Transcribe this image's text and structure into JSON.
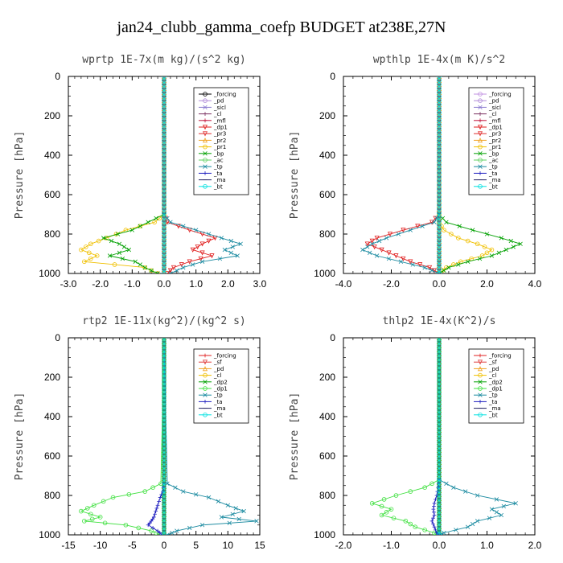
{
  "title": "jan24_clubb_gamma_coefp  BUDGET at238E,27N",
  "chart_data": [
    {
      "type": "line",
      "title": "wprtp   1E-7x(m kg)/(s^2 kg)",
      "ylabel": "Pressure [hPa]",
      "xlim": [
        -3.0,
        3.0
      ],
      "ylim": [
        1000,
        0
      ],
      "xticks": [
        "-3.0",
        "-2.0",
        "-1.0",
        "0.0",
        "1.0",
        "2.0",
        "3.0"
      ],
      "yticks": [
        "0",
        "200",
        "400",
        "600",
        "800",
        "1000"
      ],
      "pressure": [
        700,
        740,
        780,
        820,
        850,
        880,
        910,
        940,
        970,
        1000
      ],
      "legend": [
        "_forcing",
        "_pd",
        "_sicl",
        "_cl",
        "_mfl",
        "_dp1",
        "_pr3",
        "_pr2",
        "_pr1",
        "_bp",
        "_ac",
        "_tp",
        "_ta",
        "_ma",
        "_bt"
      ],
      "series": [
        {
          "name": "_forcing",
          "color": "#000000",
          "marker": "o",
          "values": [
            0,
            0,
            0,
            0,
            0,
            0,
            0,
            0,
            0,
            0
          ]
        },
        {
          "name": "_pd",
          "color": "#b08ad8",
          "marker": "o",
          "values": [
            0,
            0,
            0,
            0,
            0,
            0,
            0,
            0,
            0,
            0
          ]
        },
        {
          "name": "_sicl",
          "color": "#8a7ad0",
          "marker": "x",
          "values": [
            0,
            0,
            0,
            0,
            0,
            0,
            0,
            0,
            0,
            0
          ]
        },
        {
          "name": "_cl",
          "color": "#7a3060",
          "marker": "+",
          "values": [
            0,
            0,
            0,
            0,
            0,
            0,
            0,
            0,
            0,
            0
          ]
        },
        {
          "name": "_mfl",
          "color": "#c0143c",
          "marker": "+",
          "values": [
            0,
            0,
            0,
            0,
            0,
            0,
            0,
            0,
            0,
            0
          ]
        },
        {
          "name": "_dp1",
          "color": "#e02020",
          "marker": "v",
          "values": [
            0.0,
            0.1,
            0.8,
            1.6,
            1.2,
            0.9,
            1.5,
            0.8,
            0.3,
            0.1
          ]
        },
        {
          "name": "_pr3",
          "color": "#e03030",
          "marker": "v",
          "values": [
            0,
            0,
            0,
            0,
            0,
            0,
            0,
            0,
            0,
            0
          ]
        },
        {
          "name": "_pr2",
          "color": "#f0a020",
          "marker": "^",
          "values": [
            0,
            0,
            0,
            0,
            0,
            0,
            0,
            0,
            0,
            0
          ]
        },
        {
          "name": "_pr1",
          "color": "#f0c000",
          "marker": "o",
          "values": [
            0.0,
            -0.3,
            -1.2,
            -1.8,
            -2.3,
            -2.6,
            -2.1,
            -2.5,
            -0.6,
            -0.2
          ]
        },
        {
          "name": "_bp",
          "color": "#00a000",
          "marker": "x",
          "values": [
            0.0,
            -0.5,
            -1.0,
            -1.9,
            -1.4,
            -1.1,
            -1.7,
            -0.9,
            -0.6,
            -0.2
          ]
        },
        {
          "name": "_ac",
          "color": "#60d060",
          "marker": "o",
          "values": [
            0,
            0,
            0,
            0,
            0,
            0,
            0,
            0,
            0,
            0
          ]
        },
        {
          "name": "_tp",
          "color": "#1a8aa0",
          "marker": "x",
          "values": [
            0.0,
            0.2,
            1.0,
            1.8,
            2.4,
            1.9,
            2.3,
            1.2,
            0.6,
            0.2
          ]
        },
        {
          "name": "_ta",
          "color": "#2020c0",
          "marker": "+",
          "values": [
            0,
            0,
            0,
            0,
            0,
            0,
            0,
            0,
            0,
            0
          ]
        },
        {
          "name": "_ma",
          "color": "#202060",
          "marker": "-",
          "values": [
            0,
            0,
            0,
            0,
            0,
            0,
            0,
            0,
            0,
            0
          ]
        },
        {
          "name": "_bt",
          "color": "#00e0e0",
          "marker": "o",
          "values": [
            0,
            0,
            0,
            0,
            0,
            0,
            0,
            0,
            0,
            0
          ]
        }
      ]
    },
    {
      "type": "line",
      "title": "wpthlp   1E-4x(m K)/s^2",
      "ylabel": "Pressure [hPa]",
      "xlim": [
        -4.0,
        4.0
      ],
      "ylim": [
        1000,
        0
      ],
      "xticks": [
        "-4.0",
        "-2.0",
        "0.0",
        "2.0",
        "4.0"
      ],
      "yticks": [
        "0",
        "200",
        "400",
        "600",
        "800",
        "1000"
      ],
      "pressure": [
        700,
        740,
        780,
        820,
        850,
        880,
        910,
        940,
        970,
        1000
      ],
      "legend": [
        "_forcing",
        "_pd",
        "_sicl",
        "_cl",
        "_mfl",
        "_dp1",
        "_pr3",
        "_pr2",
        "_pr1",
        "_bp",
        "_ac",
        "_tp",
        "_ta",
        "_ma",
        "_bt"
      ],
      "series": [
        {
          "name": "_forcing",
          "color": "#c090e0",
          "marker": "o",
          "values": [
            0,
            0,
            0,
            0,
            0,
            0,
            0,
            0,
            0,
            0
          ]
        },
        {
          "name": "_pd",
          "color": "#b08ad8",
          "marker": "o",
          "values": [
            0,
            0,
            0,
            0,
            0,
            0,
            0,
            0,
            0,
            0
          ]
        },
        {
          "name": "_sicl",
          "color": "#8a7ad0",
          "marker": "x",
          "values": [
            0,
            0,
            0,
            0,
            0,
            0,
            0,
            0,
            0,
            0
          ]
        },
        {
          "name": "_cl",
          "color": "#7a3060",
          "marker": "+",
          "values": [
            0,
            0,
            0,
            0,
            0,
            0,
            0,
            0,
            0,
            0
          ]
        },
        {
          "name": "_mfl",
          "color": "#c0143c",
          "marker": "+",
          "values": [
            0,
            0,
            0,
            0,
            0,
            0,
            0,
            0,
            0,
            0
          ]
        },
        {
          "name": "_dp1",
          "color": "#e02020",
          "marker": "v",
          "values": [
            0.0,
            -0.3,
            -1.5,
            -2.6,
            -3.0,
            -2.4,
            -1.8,
            -1.2,
            -0.4,
            0.0
          ]
        },
        {
          "name": "_pr3",
          "color": "#e03030",
          "marker": "v",
          "values": [
            0,
            0,
            0,
            0,
            0,
            0,
            0,
            0,
            0,
            0
          ]
        },
        {
          "name": "_pr2",
          "color": "#f0a020",
          "marker": "^",
          "values": [
            0,
            0,
            0,
            0,
            0,
            0,
            0,
            0,
            0,
            0
          ]
        },
        {
          "name": "_pr1",
          "color": "#f0c000",
          "marker": "o",
          "values": [
            0,
            0,
            0.2,
            0.8,
            1.6,
            2.2,
            1.8,
            0.9,
            0.3,
            0.0
          ]
        },
        {
          "name": "_bp",
          "color": "#00a000",
          "marker": "x",
          "values": [
            0.0,
            0.3,
            1.4,
            2.6,
            3.4,
            2.8,
            2.2,
            1.2,
            0.4,
            0.0
          ]
        },
        {
          "name": "_ac",
          "color": "#60d060",
          "marker": "o",
          "values": [
            0,
            0,
            0,
            0,
            0,
            0,
            0,
            0,
            0,
            0
          ]
        },
        {
          "name": "_tp",
          "color": "#1a8aa0",
          "marker": "x",
          "values": [
            0.0,
            -0.2,
            -1.2,
            -2.2,
            -2.8,
            -3.2,
            -2.6,
            -1.6,
            -0.6,
            0.0
          ]
        },
        {
          "name": "_ta",
          "color": "#2020c0",
          "marker": "+",
          "values": [
            0,
            0,
            0,
            0,
            0,
            0,
            0,
            0,
            0,
            0
          ]
        },
        {
          "name": "_ma",
          "color": "#202060",
          "marker": "-",
          "values": [
            0,
            0,
            0,
            0,
            0,
            0,
            0,
            0,
            0,
            0
          ]
        },
        {
          "name": "_bt",
          "color": "#00e0e0",
          "marker": "o",
          "values": [
            0,
            0,
            0,
            0,
            0,
            0,
            0,
            0,
            0,
            0
          ]
        }
      ]
    },
    {
      "type": "line",
      "title": "rtp2   1E-11x(kg^2)/(kg^2 s)",
      "ylabel": "Pressure [hPa]",
      "xlim": [
        -15,
        15
      ],
      "ylim": [
        1000,
        0
      ],
      "xticks": [
        "-15",
        "-10",
        "-5",
        "0",
        "5",
        "10",
        "15"
      ],
      "yticks": [
        "0",
        "200",
        "400",
        "600",
        "800",
        "1000"
      ],
      "pressure": [
        740,
        780,
        810,
        850,
        880,
        910,
        930,
        950,
        980,
        1000
      ],
      "legend": [
        "_forcing",
        "_sf",
        "_pd",
        "_cl",
        "_dp2",
        "_dp1",
        "_tp",
        "_ta",
        "_ma",
        "_bt"
      ],
      "series": [
        {
          "name": "_forcing",
          "color": "#e02020",
          "marker": "+",
          "values": [
            0,
            0,
            0,
            0,
            0,
            0,
            0,
            0,
            0,
            0
          ]
        },
        {
          "name": "_sf",
          "color": "#e04040",
          "marker": "v",
          "values": [
            0,
            0,
            0,
            0,
            0,
            0,
            0,
            0,
            0,
            0
          ]
        },
        {
          "name": "_pd",
          "color": "#f0a020",
          "marker": "^",
          "values": [
            0,
            0,
            0,
            0,
            0,
            0,
            0,
            0,
            0,
            0
          ]
        },
        {
          "name": "_cl",
          "color": "#f0c000",
          "marker": "o",
          "values": [
            0,
            0,
            0,
            0,
            0,
            0,
            0,
            0,
            0,
            0
          ]
        },
        {
          "name": "_dp2",
          "color": "#00a000",
          "marker": "x",
          "values": [
            0,
            0,
            0,
            0,
            0,
            0,
            0,
            0,
            0,
            0
          ]
        },
        {
          "name": "_dp1",
          "color": "#40e040",
          "marker": "o",
          "values": [
            -0.5,
            -3.0,
            -8.0,
            -11.0,
            -13.0,
            -10.0,
            -12.5,
            -6.0,
            -2.0,
            -0.5
          ]
        },
        {
          "name": "_tp",
          "color": "#1a8aa0",
          "marker": "x",
          "values": [
            0.5,
            3.0,
            7.0,
            10.0,
            12.5,
            9.0,
            14.5,
            6.0,
            2.0,
            0.5
          ]
        },
        {
          "name": "_ta",
          "color": "#2020c0",
          "marker": "+",
          "values": [
            0.0,
            -0.2,
            -0.6,
            -1.0,
            -1.3,
            -1.6,
            -2.0,
            -2.5,
            -1.0,
            -0.3
          ]
        },
        {
          "name": "_ma",
          "color": "#202060",
          "marker": "-",
          "values": [
            0,
            0,
            0,
            0,
            0,
            0,
            0,
            0,
            0,
            0
          ]
        },
        {
          "name": "_bt",
          "color": "#00e0e0",
          "marker": "o",
          "values": [
            0,
            0,
            0,
            0,
            0,
            0,
            0,
            0,
            0,
            0
          ]
        }
      ]
    },
    {
      "type": "line",
      "title": "thlp2   1E-4x(K^2)/s",
      "ylabel": "Pressure [hPa]",
      "xlim": [
        -2.0,
        2.0
      ],
      "ylim": [
        1000,
        0
      ],
      "xticks": [
        "-2.0",
        "-1.0",
        "0.0",
        "1.0",
        "2.0"
      ],
      "yticks": [
        "0",
        "200",
        "400",
        "600",
        "800",
        "1000"
      ],
      "pressure": [
        720,
        760,
        800,
        840,
        870,
        900,
        930,
        960,
        990,
        1000
      ],
      "legend": [
        "_forcing",
        "_sf",
        "_pd",
        "_cl",
        "_dp2",
        "_dp1",
        "_tp",
        "_ta",
        "_ma",
        "_bt"
      ],
      "series": [
        {
          "name": "_forcing",
          "color": "#e02020",
          "marker": "+",
          "values": [
            0,
            0,
            0,
            0,
            0,
            0,
            0,
            0,
            0,
            0
          ]
        },
        {
          "name": "_sf",
          "color": "#e04040",
          "marker": "v",
          "values": [
            0,
            0,
            0,
            0,
            0,
            0,
            0,
            0,
            0,
            0
          ]
        },
        {
          "name": "_pd",
          "color": "#f0a020",
          "marker": "^",
          "values": [
            0,
            0,
            0,
            0,
            0,
            0,
            0,
            0,
            0,
            0
          ]
        },
        {
          "name": "_cl",
          "color": "#f0c000",
          "marker": "o",
          "values": [
            0,
            0,
            0,
            0,
            0,
            0,
            0,
            0,
            0,
            0
          ]
        },
        {
          "name": "_dp2",
          "color": "#00a000",
          "marker": "x",
          "values": [
            0,
            0,
            0,
            0,
            0,
            0,
            0,
            0,
            0,
            0
          ]
        },
        {
          "name": "_dp1",
          "color": "#40e040",
          "marker": "o",
          "values": [
            0.0,
            -0.3,
            -0.9,
            -1.4,
            -1.0,
            -1.2,
            -0.7,
            -0.5,
            -0.1,
            0.0
          ]
        },
        {
          "name": "_tp",
          "color": "#1a8aa0",
          "marker": "x",
          "values": [
            0.0,
            0.3,
            0.8,
            1.6,
            1.1,
            1.3,
            0.8,
            0.6,
            0.1,
            0.0
          ]
        },
        {
          "name": "_ta",
          "color": "#2020c0",
          "marker": "+",
          "values": [
            0.0,
            -0.02,
            -0.05,
            -0.1,
            -0.12,
            -0.1,
            -0.15,
            -0.1,
            -0.05,
            0.0
          ]
        },
        {
          "name": "_ma",
          "color": "#202060",
          "marker": "-",
          "values": [
            0,
            0,
            0,
            0,
            0,
            0,
            0,
            0,
            0,
            0
          ]
        },
        {
          "name": "_bt",
          "color": "#00e0e0",
          "marker": "o",
          "values": [
            0,
            0,
            0,
            0,
            0,
            0,
            0,
            0,
            0,
            0
          ]
        }
      ]
    }
  ]
}
